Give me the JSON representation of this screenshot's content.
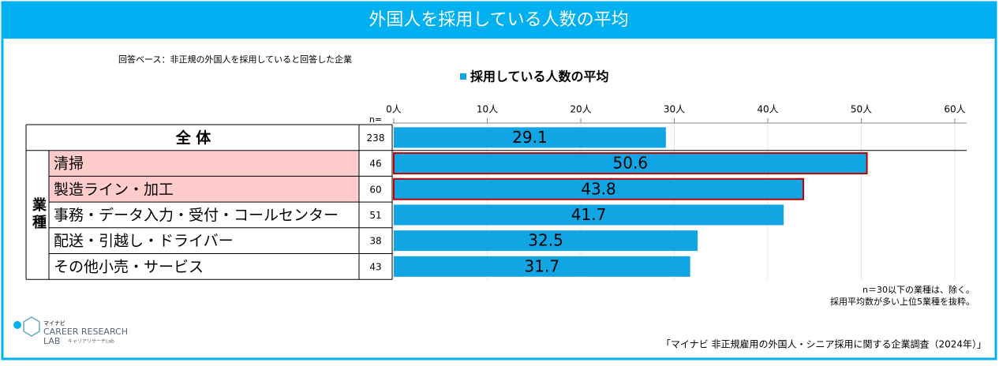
{
  "chart_data": {
    "type": "bar",
    "orientation": "horizontal",
    "title": "外国人を採用している人数の平均",
    "subtitle": "回答ベース：非正規の外国人を採用していると回答した企業",
    "group_label": "業種",
    "categories": [
      "全 体",
      "清掃",
      "製造ライン・加工",
      "事務・データ入力・受付・コールセンター",
      "配送・引越し・ドライバー",
      "その他小売・サービス"
    ],
    "highlighted": [
      false,
      true,
      true,
      false,
      false,
      false
    ],
    "n_label": "n=",
    "n_values": [
      238,
      46,
      60,
      51,
      38,
      43
    ],
    "series": [
      {
        "name": "採用している人数の平均",
        "color": "#11a5e4",
        "values": [
          29.1,
          50.6,
          43.8,
          41.7,
          32.5,
          31.7
        ]
      }
    ],
    "xlim": [
      0,
      60
    ],
    "xticks": [
      {
        "value": 0,
        "label": "0人"
      },
      {
        "value": 10,
        "label": "10人"
      },
      {
        "value": 20,
        "label": "20人"
      },
      {
        "value": 30,
        "label": "30人"
      },
      {
        "value": 40,
        "label": "40人"
      },
      {
        "value": 50,
        "label": "50人"
      },
      {
        "value": 60,
        "label": "60人"
      }
    ],
    "grid": true,
    "notes": [
      "n＝30以下の業種は、除く。",
      "採用平均数が多い上位5業種を抜粋。"
    ],
    "source": "「マイナビ 非正規雇用の外国人・シニア採用に関する企業調査（2024年）」"
  },
  "logo": {
    "top": "マイナビ",
    "line1": "CAREER RESEARCH",
    "line2": "LAB",
    "sub": "キャリアリサーチLab"
  }
}
